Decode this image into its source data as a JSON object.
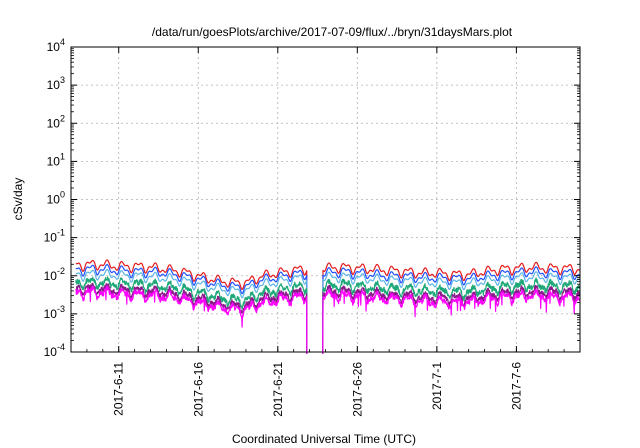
{
  "chart_data": {
    "type": "line",
    "title": "/data/run/goesPlots/archive/2017-07-09/flux/../bryn/31daysMars.plot",
    "xlabel": "Coordinated Universal Time (UTC)",
    "ylabel": "cSv/day",
    "yscale": "log",
    "ylim": [
      0.0001,
      10000
    ],
    "xlim": [
      "2017-06-08",
      "2017-07-10"
    ],
    "grid": true,
    "y_ticks": [
      {
        "value": 0.0001,
        "base": "10",
        "exp": "-4"
      },
      {
        "value": 0.001,
        "base": "10",
        "exp": "-3"
      },
      {
        "value": 0.01,
        "base": "10",
        "exp": "-2"
      },
      {
        "value": 0.1,
        "base": "10",
        "exp": "-1"
      },
      {
        "value": 1,
        "base": "10",
        "exp": "0"
      },
      {
        "value": 10,
        "base": "10",
        "exp": "1"
      },
      {
        "value": 100,
        "base": "10",
        "exp": "2"
      },
      {
        "value": 1000,
        "base": "10",
        "exp": "3"
      },
      {
        "value": 10000,
        "base": "10",
        "exp": "4"
      }
    ],
    "x_ticks": [
      {
        "date": "2017-06-11",
        "label": "2017-6-11"
      },
      {
        "date": "2017-06-16",
        "label": "2017-6-16"
      },
      {
        "date": "2017-06-21",
        "label": "2017-6-21"
      },
      {
        "date": "2017-06-26",
        "label": "2017-6-26"
      },
      {
        "date": "2017-07-01",
        "label": "2017-7-1"
      },
      {
        "date": "2017-07-06",
        "label": "2017-7-6"
      }
    ],
    "gap": {
      "start": "2017-06-22T20:00",
      "end": "2017-06-23T20:00"
    },
    "envelope_dates": [
      "2017-06-08",
      "2017-06-09",
      "2017-06-10",
      "2017-06-11",
      "2017-06-12",
      "2017-06-13",
      "2017-06-14",
      "2017-06-15",
      "2017-06-16",
      "2017-06-17",
      "2017-06-18",
      "2017-06-19",
      "2017-06-20",
      "2017-06-21",
      "2017-06-22",
      "2017-06-23",
      "2017-06-24",
      "2017-06-25",
      "2017-06-26",
      "2017-06-27",
      "2017-06-28",
      "2017-06-29",
      "2017-06-30",
      "2017-07-01",
      "2017-07-02",
      "2017-07-03",
      "2017-07-04",
      "2017-07-05",
      "2017-07-06",
      "2017-07-07",
      "2017-07-08",
      "2017-07-09",
      "2017-07-10"
    ],
    "series": [
      {
        "color": "#e41a1c",
        "values": [
          0.019,
          0.02,
          0.02,
          0.018,
          0.018,
          0.017,
          0.015,
          0.013,
          0.01,
          0.008,
          0.0068,
          0.0066,
          0.01,
          0.012,
          0.014,
          0.016,
          0.016,
          0.017,
          0.016,
          0.015,
          0.014,
          0.013,
          0.012,
          0.012,
          0.011,
          0.011,
          0.013,
          0.015,
          0.016,
          0.017,
          0.016,
          0.016,
          0.015
        ]
      },
      {
        "color": "#1f4fff",
        "values": [
          0.014,
          0.015,
          0.015,
          0.014,
          0.013,
          0.013,
          0.012,
          0.01,
          0.008,
          0.0064,
          0.0053,
          0.0051,
          0.008,
          0.0092,
          0.011,
          0.012,
          0.012,
          0.013,
          0.012,
          0.011,
          0.01,
          0.0098,
          0.0092,
          0.0089,
          0.0086,
          0.0084,
          0.0098,
          0.011,
          0.012,
          0.013,
          0.012,
          0.012,
          0.011
        ]
      },
      {
        "color": "#5ab4e8",
        "values": [
          0.0105,
          0.011,
          0.011,
          0.0105,
          0.01,
          0.0095,
          0.0088,
          0.0076,
          0.006,
          0.0049,
          0.0041,
          0.004,
          0.006,
          0.007,
          0.0083,
          0.0091,
          0.0092,
          0.0096,
          0.0089,
          0.0084,
          0.0077,
          0.0074,
          0.0069,
          0.0067,
          0.0065,
          0.0063,
          0.0074,
          0.0083,
          0.009,
          0.0096,
          0.0091,
          0.0089,
          0.0085
        ]
      },
      {
        "color": "#1fa87a",
        "values": [
          0.0064,
          0.0068,
          0.0068,
          0.0063,
          0.006,
          0.0057,
          0.0053,
          0.0045,
          0.0036,
          0.0029,
          0.0024,
          0.0023,
          0.0036,
          0.0042,
          0.005,
          0.0055,
          0.0055,
          0.0058,
          0.0054,
          0.005,
          0.0046,
          0.0044,
          0.0041,
          0.004,
          0.0039,
          0.0038,
          0.0044,
          0.005,
          0.0054,
          0.0058,
          0.0055,
          0.0053,
          0.0051
        ]
      },
      {
        "color": "#8b1a8b",
        "values": [
          0.0044,
          0.0046,
          0.0046,
          0.0043,
          0.0041,
          0.0039,
          0.0036,
          0.0031,
          0.0025,
          0.002,
          0.0017,
          0.0016,
          0.0025,
          0.0029,
          0.0034,
          0.0037,
          0.0038,
          0.0039,
          0.0037,
          0.0034,
          0.0031,
          0.003,
          0.0028,
          0.0027,
          0.0026,
          0.0026,
          0.003,
          0.0034,
          0.0037,
          0.0039,
          0.0037,
          0.0036,
          0.0035
        ]
      },
      {
        "color": "#ff00ff",
        "values": [
          0.0035,
          0.0037,
          0.0037,
          0.0034,
          0.0033,
          0.0031,
          0.0029,
          0.0025,
          0.002,
          0.0016,
          0.00135,
          0.0013,
          0.002,
          0.0023,
          0.0027,
          0.003,
          0.003,
          0.0031,
          0.0029,
          0.0027,
          0.0025,
          0.0024,
          0.0022,
          0.0022,
          0.0021,
          0.0021,
          0.0024,
          0.0027,
          0.0029,
          0.0031,
          0.0029,
          0.0028,
          0.0028
        ]
      }
    ]
  }
}
